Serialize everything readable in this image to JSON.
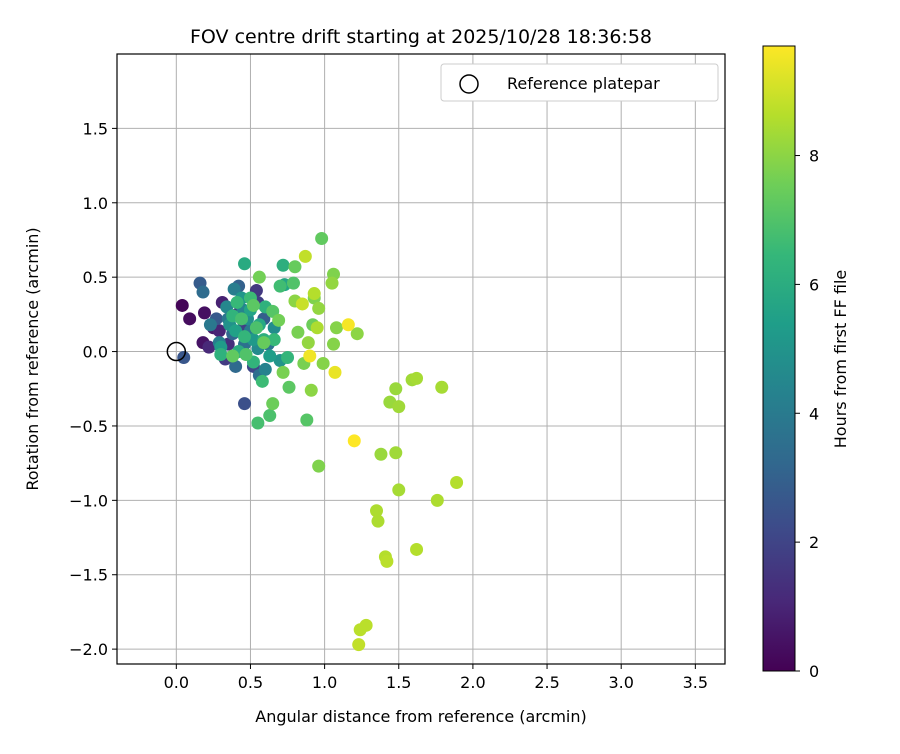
{
  "chart_data": {
    "type": "scatter",
    "title": "FOV centre drift starting at 2025/10/28 18:36:58",
    "xlabel": "Angular distance from reference (arcmin)",
    "ylabel": "Rotation from reference (arcmin)",
    "xlim": [
      -0.4,
      3.7
    ],
    "ylim": [
      -2.1,
      2.0
    ],
    "xticks": [
      0.0,
      0.5,
      1.0,
      1.5,
      2.0,
      2.5,
      3.0,
      3.5
    ],
    "xtick_labels": [
      "0.0",
      "0.5",
      "1.0",
      "1.5",
      "2.0",
      "2.5",
      "3.0",
      "3.5"
    ],
    "yticks": [
      1.5,
      1.0,
      0.5,
      0.0,
      -0.5,
      -1.0,
      -1.5,
      -2.0
    ],
    "ytick_labels": [
      "1.5",
      "1.0",
      "0.5",
      "0.0",
      "−0.5",
      "−1.0",
      "−1.5",
      "−2.0"
    ],
    "grid": true,
    "legend": {
      "position": "top-right",
      "label": "Reference platepar"
    },
    "reference_point": {
      "x": 0.0,
      "y": 0.0
    },
    "colorbar": {
      "label": "Hours from first FF file",
      "range": [
        0,
        9.7
      ],
      "ticks": [
        0,
        2,
        4,
        6,
        8
      ],
      "tick_labels": [
        "0",
        "2",
        "4",
        "6",
        "8"
      ],
      "colormap": [
        "#440154",
        "#482878",
        "#3e4989",
        "#31688e",
        "#26828e",
        "#1f9e89",
        "#35b779",
        "#6ece58",
        "#b5de2b",
        "#fde725"
      ]
    },
    "points": [
      {
        "x": 0.04,
        "y": 0.31,
        "h": 0.1
      },
      {
        "x": 0.09,
        "y": 0.22,
        "h": 0.3
      },
      {
        "x": 0.19,
        "y": 0.26,
        "h": 0.4
      },
      {
        "x": 0.18,
        "y": 0.06,
        "h": 0.5
      },
      {
        "x": 0.25,
        "y": 0.16,
        "h": 0.7
      },
      {
        "x": 0.31,
        "y": 0.33,
        "h": 0.9
      },
      {
        "x": 0.29,
        "y": 0.14,
        "h": 1.0
      },
      {
        "x": 0.22,
        "y": 0.03,
        "h": 1.1
      },
      {
        "x": 0.35,
        "y": 0.05,
        "h": 1.3
      },
      {
        "x": 0.41,
        "y": 0.25,
        "h": 1.5
      },
      {
        "x": 0.54,
        "y": 0.41,
        "h": 1.6
      },
      {
        "x": 0.33,
        "y": -0.05,
        "h": 1.7
      },
      {
        "x": 0.46,
        "y": 0.18,
        "h": 1.9
      },
      {
        "x": 0.55,
        "y": 0.33,
        "h": 1.8
      },
      {
        "x": 0.52,
        "y": -0.1,
        "h": 2.1
      },
      {
        "x": 0.46,
        "y": -0.35,
        "h": 2.4
      },
      {
        "x": 0.05,
        "y": -0.04,
        "h": 2.6
      },
      {
        "x": 0.16,
        "y": 0.46,
        "h": 2.8
      },
      {
        "x": 0.42,
        "y": 0.44,
        "h": 3.0
      },
      {
        "x": 0.27,
        "y": 0.22,
        "h": 2.7
      },
      {
        "x": 0.38,
        "y": 0.12,
        "h": 3.2
      },
      {
        "x": 0.59,
        "y": 0.22,
        "h": 2.9
      },
      {
        "x": 0.18,
        "y": 0.4,
        "h": 3.4
      },
      {
        "x": 0.4,
        "y": -0.1,
        "h": 3.3
      },
      {
        "x": 0.56,
        "y": -0.16,
        "h": 3.5
      },
      {
        "x": 0.46,
        "y": 0.05,
        "h": 3.6
      },
      {
        "x": 0.62,
        "y": 0.05,
        "h": 3.7
      },
      {
        "x": 0.35,
        "y": 0.22,
        "h": 3.8
      },
      {
        "x": 0.23,
        "y": 0.18,
        "h": 3.9
      },
      {
        "x": 0.5,
        "y": 0.14,
        "h": 4.0
      },
      {
        "x": 0.39,
        "y": 0.42,
        "h": 4.1
      },
      {
        "x": 0.29,
        "y": 0.06,
        "h": 4.2
      },
      {
        "x": 0.6,
        "y": -0.12,
        "h": 4.3
      },
      {
        "x": 0.45,
        "y": 0.28,
        "h": 4.4
      },
      {
        "x": 0.34,
        "y": 0.3,
        "h": 4.5
      },
      {
        "x": 0.55,
        "y": 0.02,
        "h": 4.6
      },
      {
        "x": 0.66,
        "y": 0.16,
        "h": 4.7
      },
      {
        "x": 0.48,
        "y": 0.22,
        "h": 4.8
      },
      {
        "x": 0.36,
        "y": 0.18,
        "h": 4.9
      },
      {
        "x": 0.7,
        "y": -0.06,
        "h": 5.0
      },
      {
        "x": 0.44,
        "y": 0.36,
        "h": 5.1
      },
      {
        "x": 0.52,
        "y": 0.08,
        "h": 5.2
      },
      {
        "x": 0.3,
        "y": 0.03,
        "h": 5.3
      },
      {
        "x": 0.63,
        "y": -0.03,
        "h": 5.4
      },
      {
        "x": 0.4,
        "y": 0.14,
        "h": 5.5
      },
      {
        "x": 0.5,
        "y": 0.28,
        "h": 5.6
      },
      {
        "x": 0.73,
        "y": 0.45,
        "h": 5.7
      },
      {
        "x": 0.56,
        "y": 0.18,
        "h": 5.8
      },
      {
        "x": 0.46,
        "y": 0.59,
        "h": 5.9
      },
      {
        "x": 0.42,
        "y": 0.0,
        "h": 6.0
      },
      {
        "x": 0.59,
        "y": 0.08,
        "h": 6.1
      },
      {
        "x": 0.72,
        "y": 0.58,
        "h": 6.1
      },
      {
        "x": 0.3,
        "y": -0.02,
        "h": 6.2
      },
      {
        "x": 0.6,
        "y": 0.3,
        "h": 6.2
      },
      {
        "x": 0.52,
        "y": -0.07,
        "h": 6.3
      },
      {
        "x": 0.38,
        "y": 0.24,
        "h": 6.3
      },
      {
        "x": 0.75,
        "y": -0.04,
        "h": 6.4
      },
      {
        "x": 0.46,
        "y": 0.1,
        "h": 6.4
      },
      {
        "x": 0.66,
        "y": 0.08,
        "h": 6.5
      },
      {
        "x": 0.41,
        "y": 0.33,
        "h": 6.5
      },
      {
        "x": 0.58,
        "y": -0.2,
        "h": 6.6
      },
      {
        "x": 0.5,
        "y": 0.36,
        "h": 6.6
      },
      {
        "x": 0.7,
        "y": 0.44,
        "h": 6.7
      },
      {
        "x": 0.55,
        "y": -0.48,
        "h": 6.8
      },
      {
        "x": 0.44,
        "y": 0.22,
        "h": 6.8
      },
      {
        "x": 0.63,
        "y": -0.43,
        "h": 6.9
      },
      {
        "x": 0.54,
        "y": 0.16,
        "h": 6.9
      },
      {
        "x": 0.79,
        "y": 0.46,
        "h": 7.0
      },
      {
        "x": 0.47,
        "y": -0.02,
        "h": 7.0
      },
      {
        "x": 0.65,
        "y": 0.27,
        "h": 7.1
      },
      {
        "x": 0.88,
        "y": -0.46,
        "h": 7.1
      },
      {
        "x": 0.52,
        "y": 0.31,
        "h": 7.2
      },
      {
        "x": 0.76,
        "y": -0.24,
        "h": 7.2
      },
      {
        "x": 0.38,
        "y": -0.03,
        "h": 7.3
      },
      {
        "x": 0.98,
        "y": 0.76,
        "h": 7.3
      },
      {
        "x": 0.59,
        "y": 0.06,
        "h": 7.4
      },
      {
        "x": 0.8,
        "y": 0.57,
        "h": 7.4
      },
      {
        "x": 0.65,
        "y": -0.35,
        "h": 7.5
      },
      {
        "x": 0.92,
        "y": 0.18,
        "h": 7.5
      },
      {
        "x": 0.69,
        "y": 0.21,
        "h": 7.6
      },
      {
        "x": 0.56,
        "y": 0.5,
        "h": 7.6
      },
      {
        "x": 0.82,
        "y": 0.13,
        "h": 7.7
      },
      {
        "x": 0.72,
        "y": -0.14,
        "h": 7.7
      },
      {
        "x": 0.86,
        "y": -0.08,
        "h": 7.7
      },
      {
        "x": 0.93,
        "y": 0.36,
        "h": 7.8
      },
      {
        "x": 1.06,
        "y": 0.52,
        "h": 7.8
      },
      {
        "x": 0.96,
        "y": -0.77,
        "h": 7.8
      },
      {
        "x": 1.08,
        "y": 0.16,
        "h": 7.9
      },
      {
        "x": 0.99,
        "y": -0.08,
        "h": 7.9
      },
      {
        "x": 1.06,
        "y": 0.05,
        "h": 7.9
      },
      {
        "x": 0.91,
        "y": -0.26,
        "h": 8.0
      },
      {
        "x": 1.22,
        "y": 0.12,
        "h": 8.0
      },
      {
        "x": 0.8,
        "y": 0.34,
        "h": 8.0
      },
      {
        "x": 0.96,
        "y": 0.29,
        "h": 8.1
      },
      {
        "x": 1.05,
        "y": 0.46,
        "h": 8.1
      },
      {
        "x": 0.89,
        "y": 0.06,
        "h": 8.1
      },
      {
        "x": 1.38,
        "y": -0.69,
        "h": 8.2
      },
      {
        "x": 1.48,
        "y": -0.25,
        "h": 8.2
      },
      {
        "x": 1.44,
        "y": -0.34,
        "h": 8.2
      },
      {
        "x": 1.5,
        "y": -0.37,
        "h": 8.3
      },
      {
        "x": 1.48,
        "y": -0.68,
        "h": 8.3
      },
      {
        "x": 1.59,
        "y": -0.19,
        "h": 8.3
      },
      {
        "x": 1.62,
        "y": -0.18,
        "h": 8.4
      },
      {
        "x": 1.79,
        "y": -0.24,
        "h": 8.4
      },
      {
        "x": 1.5,
        "y": -0.93,
        "h": 8.4
      },
      {
        "x": 1.35,
        "y": -1.07,
        "h": 8.5
      },
      {
        "x": 1.36,
        "y": -1.14,
        "h": 8.5
      },
      {
        "x": 1.76,
        "y": -1.0,
        "h": 8.5
      },
      {
        "x": 1.89,
        "y": -0.88,
        "h": 8.6
      },
      {
        "x": 1.62,
        "y": -1.33,
        "h": 8.6
      },
      {
        "x": 1.41,
        "y": -1.38,
        "h": 8.6
      },
      {
        "x": 1.42,
        "y": -1.41,
        "h": 8.7
      },
      {
        "x": 1.28,
        "y": -1.84,
        "h": 8.7
      },
      {
        "x": 1.24,
        "y": -1.87,
        "h": 8.7
      },
      {
        "x": 1.23,
        "y": -1.97,
        "h": 8.8
      },
      {
        "x": 0.87,
        "y": 0.64,
        "h": 8.8
      },
      {
        "x": 0.85,
        "y": 0.32,
        "h": 8.9
      },
      {
        "x": 0.93,
        "y": 0.39,
        "h": 8.6
      },
      {
        "x": 0.95,
        "y": 0.16,
        "h": 8.5
      },
      {
        "x": 0.9,
        "y": -0.03,
        "h": 9.5
      },
      {
        "x": 1.07,
        "y": -0.14,
        "h": 9.4
      },
      {
        "x": 1.16,
        "y": 0.18,
        "h": 9.6
      },
      {
        "x": 1.2,
        "y": -0.6,
        "h": 9.7
      }
    ]
  }
}
